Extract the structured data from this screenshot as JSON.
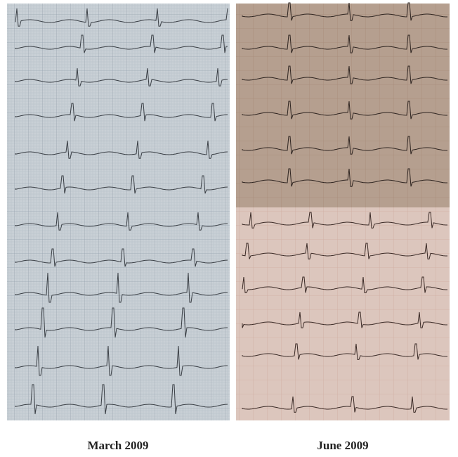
{
  "panels": [
    {
      "caption": "March 2009"
    },
    {
      "caption": "June 2009"
    }
  ]
}
